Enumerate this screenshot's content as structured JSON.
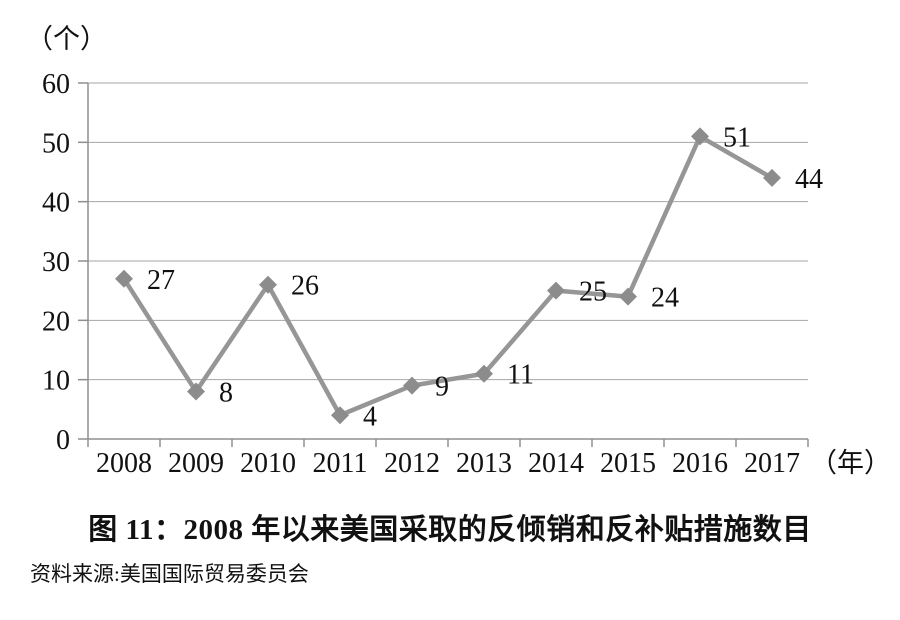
{
  "page": {
    "title": "图 11：2008 年以来美国采取的反倾销和反补贴措施数目",
    "source": "资料来源:美国国际贸易委员会"
  },
  "chart_data": {
    "type": "line",
    "title": "图 11：2008 年以来美国采取的反倾销和反补贴措施数目",
    "source_note": "资料来源:美国国际贸易委员会",
    "categories": [
      "2008",
      "2009",
      "2010",
      "2011",
      "2012",
      "2013",
      "2014",
      "2015",
      "2016",
      "2017"
    ],
    "values": [
      27,
      8,
      26,
      4,
      9,
      11,
      25,
      24,
      51,
      44
    ],
    "data_labels": [
      "27",
      "8",
      "26",
      "4",
      "9",
      "11",
      "25",
      "24",
      "51",
      "44"
    ],
    "y_axis_unit": "（个）",
    "x_axis_unit": "（年）",
    "yticks": [
      0,
      10,
      20,
      30,
      40,
      50,
      60
    ],
    "ylim": [
      0,
      60
    ],
    "grid": "horizontal",
    "legend_position": "none",
    "marker": "diamond",
    "colors": {
      "line": "#969696",
      "marker": "#8c8c8c",
      "grid": "#a6a6a6",
      "axis": "#8f8f8f",
      "text": "#111111"
    }
  }
}
